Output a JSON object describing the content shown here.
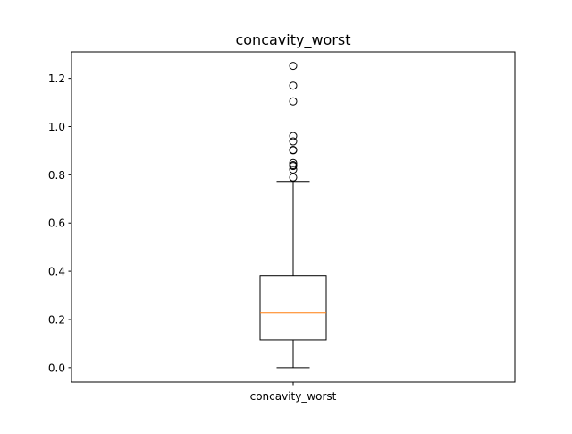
{
  "chart_data": {
    "type": "box",
    "title": "concavity_worst",
    "xlabel": "",
    "ylabel": "",
    "categories": [
      "concavity_worst"
    ],
    "ylim": [
      -0.06,
      1.31
    ],
    "yticks": [
      0.0,
      0.2,
      0.4,
      0.6,
      0.8,
      1.0,
      1.2
    ],
    "ytick_labels": [
      "0.0",
      "0.2",
      "0.4",
      "0.6",
      "0.8",
      "1.0",
      "1.2"
    ],
    "box": {
      "whisker_low": 0.0,
      "q1": 0.1147,
      "median": 0.2267,
      "q3": 0.3829,
      "whisker_high": 0.7727
    },
    "outliers": [
      0.7892,
      0.8216,
      0.8363,
      0.8402,
      0.8488,
      0.9019,
      0.9034,
      0.9387,
      0.9608,
      1.105,
      1.17,
      1.252
    ],
    "grid": false,
    "legend": "none",
    "colors": {
      "box": "#000000",
      "median": "#ff7f0e",
      "outlier": "#000000"
    }
  }
}
